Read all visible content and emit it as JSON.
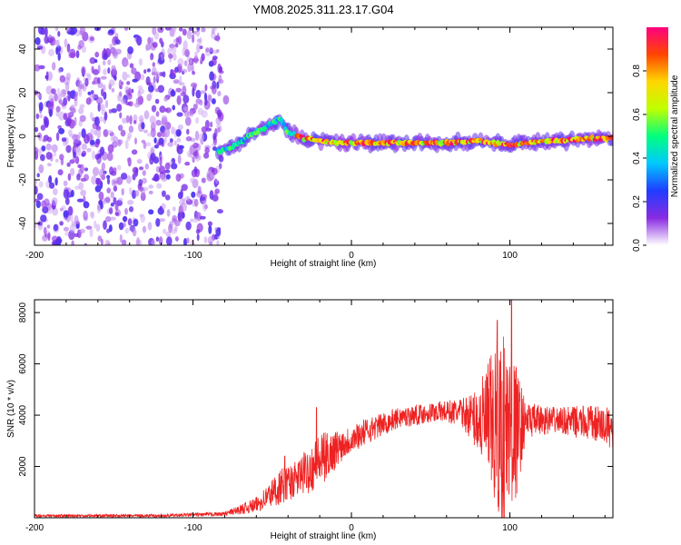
{
  "title": "YM08.2025.311.23.17.G04",
  "chart_data": [
    {
      "type": "heatmap",
      "name": "spectrogram",
      "title": "YM08.2025.311.23.17.G04",
      "xlabel": "Height of straight line (km)",
      "ylabel": "Frequency (Hz)",
      "xlim": [
        -200,
        165
      ],
      "ylim": [
        -50,
        50
      ],
      "xticks": [
        -200,
        -100,
        0,
        100
      ],
      "yticks": [
        -40,
        -20,
        0,
        20,
        40
      ],
      "noise_region_x": [
        -200,
        -82
      ],
      "signal_path": [
        [
          -84,
          -7
        ],
        [
          -75,
          -5
        ],
        [
          -65,
          0
        ],
        [
          -55,
          4
        ],
        [
          -45,
          8
        ],
        [
          -40,
          2
        ],
        [
          -30,
          -1
        ],
        [
          -20,
          -2
        ],
        [
          -10,
          -3
        ],
        [
          0,
          -3
        ],
        [
          20,
          -3
        ],
        [
          40,
          -3
        ],
        [
          60,
          -3
        ],
        [
          80,
          -2
        ],
        [
          90,
          -3
        ],
        [
          100,
          -4
        ],
        [
          110,
          -3
        ],
        [
          130,
          -2
        ],
        [
          150,
          -1
        ],
        [
          165,
          -1
        ]
      ],
      "colorbar": {
        "label": "Normalized spectral amplitude",
        "range": [
          0.0,
          1.0
        ],
        "ticks": [
          "0.0",
          "0.2",
          "0.4",
          "0.6",
          "0.8"
        ],
        "colors": [
          "#ffffff",
          "#8a2be2",
          "#1f3cff",
          "#00c8ff",
          "#00ff7f",
          "#bfff00",
          "#ffd700",
          "#ff4500",
          "#ff0080"
        ]
      }
    },
    {
      "type": "line",
      "name": "snr",
      "xlabel": "Height of straight line (km)",
      "ylabel": "SNR (10 * v/v)",
      "xlim": [
        -200,
        165
      ],
      "ylim": [
        0,
        8500
      ],
      "xticks": [
        -200,
        -100,
        0,
        100
      ],
      "yticks": [
        2000,
        4000,
        6000,
        8000
      ],
      "color": "#ee2222",
      "envelope": [
        {
          "x": -200,
          "base": 80,
          "amp": 60
        },
        {
          "x": -120,
          "base": 80,
          "amp": 60
        },
        {
          "x": -80,
          "base": 150,
          "amp": 80
        },
        {
          "x": -60,
          "base": 500,
          "amp": 300
        },
        {
          "x": -45,
          "base": 1200,
          "amp": 700
        },
        {
          "x": -35,
          "base": 1500,
          "amp": 700
        },
        {
          "x": -20,
          "base": 2200,
          "amp": 1100
        },
        {
          "x": -5,
          "base": 2900,
          "amp": 600
        },
        {
          "x": 10,
          "base": 3400,
          "amp": 500
        },
        {
          "x": 30,
          "base": 3900,
          "amp": 400
        },
        {
          "x": 55,
          "base": 4150,
          "amp": 400
        },
        {
          "x": 70,
          "base": 4100,
          "amp": 550
        },
        {
          "x": 80,
          "base": 3800,
          "amp": 1300
        },
        {
          "x": 88,
          "base": 3600,
          "amp": 2800
        },
        {
          "x": 95,
          "base": 3400,
          "amp": 4200
        },
        {
          "x": 103,
          "base": 3300,
          "amp": 3000
        },
        {
          "x": 110,
          "base": 3800,
          "amp": 700
        },
        {
          "x": 130,
          "base": 3800,
          "amp": 500
        },
        {
          "x": 150,
          "base": 3700,
          "amp": 700
        },
        {
          "x": 165,
          "base": 3500,
          "amp": 800
        }
      ],
      "peaks": [
        {
          "x": -42,
          "y": 2400
        },
        {
          "x": -22,
          "y": 4300
        },
        {
          "x": 92,
          "y": 7700
        },
        {
          "x": 101,
          "y": 8500
        }
      ]
    }
  ]
}
